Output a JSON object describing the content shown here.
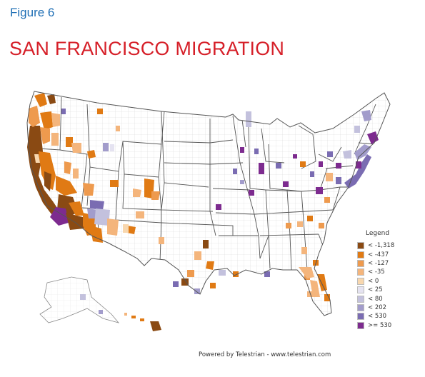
{
  "figure_label": "Figure 6",
  "title": "SAN FRANCISCO MIGRATION",
  "legend": {
    "title": "Legend",
    "items": [
      {
        "label": "< -1,318",
        "color": "#8a4a13"
      },
      {
        "label": "< -437",
        "color": "#e07a14"
      },
      {
        "label": "< -127",
        "color": "#ee9a4e"
      },
      {
        "label": "< -35",
        "color": "#f4b57c"
      },
      {
        "label": "< 0",
        "color": "#f8d7ae"
      },
      {
        "label": "< 25",
        "color": "#e5e3f1"
      },
      {
        "label": "< 80",
        "color": "#c3c1dd"
      },
      {
        "label": "< 202",
        "color": "#a29ccb"
      },
      {
        "label": "< 530",
        "color": "#7a6cb2"
      },
      {
        "label": ">= 530",
        "color": "#7d2b8f"
      }
    ]
  },
  "credit": "Powered by Telestrian - www.telestrian.com"
}
